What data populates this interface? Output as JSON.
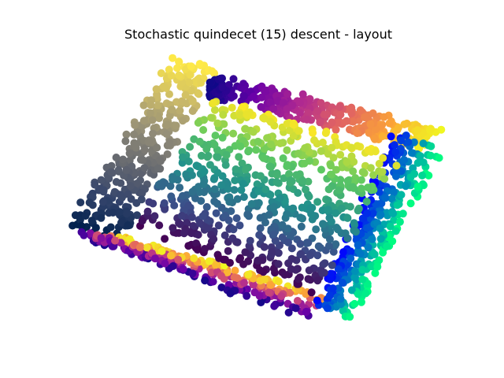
{
  "chart_data": {
    "type": "scatter",
    "title": "Stochastic quindecet (15) descent - layout",
    "xlabel": "",
    "ylabel": "",
    "axes": "off",
    "grid": false,
    "legend": "none",
    "marker": "circle",
    "xlim": [
      0,
      1
    ],
    "ylim": [
      0,
      1
    ],
    "groups": [
      {
        "label": "",
        "colormap": "cividis",
        "corners": [
          [
            0.02,
            0.38
          ],
          [
            0.28,
            0.95
          ],
          [
            0.39,
            0.92
          ],
          [
            0.15,
            0.33
          ]
        ],
        "count": 320
      },
      {
        "label": "",
        "colormap": "plasma",
        "corners": [
          [
            0.38,
            0.9
          ],
          [
            0.97,
            0.71
          ],
          [
            0.92,
            0.64
          ],
          [
            0.37,
            0.83
          ]
        ],
        "count": 300
      },
      {
        "label": "",
        "colormap": "plasma",
        "corners": [
          [
            0.02,
            0.36
          ],
          [
            0.15,
            0.34
          ],
          [
            0.69,
            0.14
          ],
          [
            0.63,
            0.06
          ]
        ],
        "count": 300
      },
      {
        "label": "",
        "colormap": "winter",
        "corners": [
          [
            0.85,
            0.7
          ],
          [
            0.97,
            0.64
          ],
          [
            0.73,
            0.05
          ],
          [
            0.65,
            0.11
          ]
        ],
        "count": 300
      },
      {
        "label": "",
        "colormap": "viridis",
        "corners": [
          [
            0.18,
            0.38
          ],
          [
            0.39,
            0.82
          ],
          [
            0.86,
            0.62
          ],
          [
            0.65,
            0.15
          ]
        ],
        "count": 650
      }
    ]
  }
}
